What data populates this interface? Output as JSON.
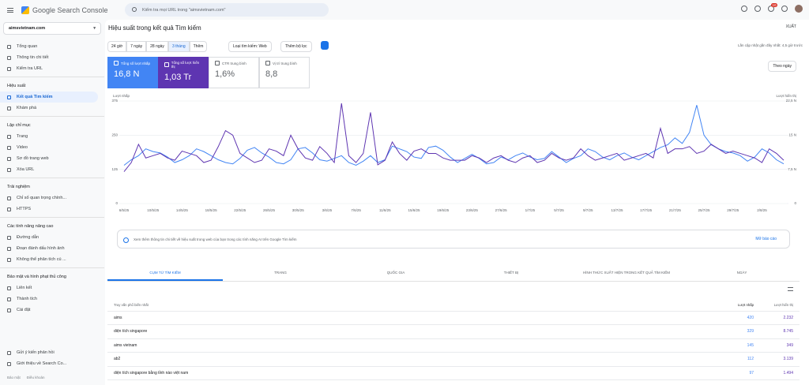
{
  "header": {
    "product": "Google Search Console",
    "search_placeholder": "Kiểm tra mọi URL trong \"aimsvietnam.com\"",
    "badge": "10"
  },
  "sidebar": {
    "property": "aimsvietnam.com",
    "top_items": [
      "Tổng quan",
      "Thông tin chi tiết",
      "Kiểm tra URL"
    ],
    "sections": [
      {
        "title": "Hiệu suất",
        "items": [
          "Kết quả Tìm kiếm",
          "Khám phá"
        ]
      },
      {
        "title": "Lập chỉ mục",
        "items": [
          "Trang",
          "Video",
          "Sơ đồ trang web",
          "Xóa URL"
        ]
      },
      {
        "title": "Trải nghiệm",
        "items": [
          "Chỉ số quan trọng chính...",
          "HTTPS"
        ]
      },
      {
        "title": "Các tính năng nâng cao",
        "items": [
          "Đường dẫn",
          "Đoạn đánh dấu hình ảnh",
          "Không thể phân tích cú ..."
        ]
      },
      {
        "title": "Bảo mật và hình phạt thủ công",
        "items": [
          "Liên kết",
          "Thành tích",
          "Cài đặt"
        ]
      }
    ],
    "bottom_items": [
      "Gửi ý kiến phản hồi",
      "Giới thiệu về Search Co..."
    ],
    "footer": [
      "Bảo mật",
      "Điều khoản"
    ]
  },
  "page": {
    "title": "Hiệu suất trong kết quả Tìm kiếm",
    "export": "XUẤT",
    "date_ranges": [
      "24 giờ",
      "7 ngày",
      "28 ngày",
      "3 tháng",
      "Thêm"
    ],
    "search_type": "Loại tìm kiếm: Web",
    "add_filter": "Thêm bộ lọc",
    "updated": "Lần cập nhật gần đây nhất: 4,5 giờ trước",
    "granularity": "Theo ngày"
  },
  "metrics": [
    {
      "label": "Tổng số lượt nhấp",
      "value": "16,8 N"
    },
    {
      "label": "Tổng số lượt hiển thị",
      "value": "1,03 Tr"
    },
    {
      "label": "CTR trung bình",
      "value": "1,6%"
    },
    {
      "label": "Vị trí trung bình",
      "value": "8,8"
    }
  ],
  "chart_data": {
    "type": "line",
    "categories": [
      "6/5/25",
      null,
      null,
      null,
      "10/5/25",
      null,
      null,
      null,
      "14/5/25",
      null,
      null,
      null,
      "18/5/25",
      null,
      null,
      null,
      "22/5/25",
      null,
      null,
      null,
      "26/5/25",
      null,
      null,
      null,
      "30/5/25",
      null,
      null,
      null,
      "3/6/25",
      null,
      null,
      null,
      "7/6/25",
      null,
      null,
      null,
      "11/6/25",
      null,
      null,
      null,
      "15/6/25",
      null,
      null,
      null,
      "19/6/25",
      null,
      null,
      null,
      "23/6/25",
      null,
      null,
      null,
      "27/6/25",
      null,
      null,
      null,
      "1/7/25",
      null,
      null,
      null,
      "5/7/25",
      null,
      null,
      null,
      "9/7/25",
      null,
      null,
      null,
      "13/7/25",
      null,
      null,
      null,
      "17/7/25",
      null,
      null,
      null,
      "21/7/25",
      null,
      null,
      null,
      "25/7/25",
      null,
      null,
      null,
      "29/7/25",
      null,
      null,
      null,
      "2/8/25",
      null,
      null,
      null
    ],
    "series": [
      {
        "name": "Lượt nhấp",
        "color": "#4285f4",
        "values": [
          140,
          160,
          175,
          200,
          190,
          185,
          170,
          150,
          160,
          175,
          200,
          190,
          175,
          160,
          150,
          145,
          165,
          195,
          205,
          185,
          170,
          150,
          145,
          160,
          200,
          205,
          185,
          160,
          155,
          165,
          175,
          150,
          140,
          155,
          175,
          150,
          160,
          210,
          200,
          190,
          170,
          165,
          205,
          210,
          195,
          170,
          150,
          165,
          180,
          165,
          145,
          150,
          170,
          160,
          175,
          185,
          170,
          160,
          165,
          190,
          170,
          150,
          165,
          175,
          200,
          190,
          170,
          160,
          175,
          185,
          170,
          160,
          175,
          190,
          205,
          215,
          240,
          220,
          260,
          360,
          250,
          215,
          200,
          190,
          185,
          175,
          155,
          170,
          200,
          185,
          160,
          145
        ]
      },
      {
        "name": "Lượt hiển thị",
        "color": "#5e35b1",
        "axis": "y2",
        "values": [
          7000,
          9000,
          13000,
          10000,
          10500,
          11000,
          10000,
          9500,
          11500,
          11000,
          10500,
          9000,
          9500,
          12500,
          16000,
          15000,
          11000,
          10000,
          9000,
          9500,
          12000,
          11500,
          10500,
          15000,
          12000,
          10000,
          9500,
          12500,
          11000,
          9000,
          22000,
          10500,
          9000,
          11000,
          20000,
          8500,
          9500,
          13500,
          11000,
          9500,
          11500,
          12000,
          11000,
          11000,
          10000,
          9500,
          9500,
          9500,
          10500,
          10000,
          9000,
          10000,
          10500,
          9500,
          9000,
          10000,
          10500,
          9000,
          9500,
          11000,
          10000,
          9500,
          10000,
          12000,
          10500,
          9500,
          10000,
          10500,
          11000,
          9500,
          10000,
          10500,
          11000,
          10000,
          16500,
          11000,
          12000,
          12000,
          12500,
          11000,
          11500,
          13000,
          12000,
          11000,
          11500,
          11000,
          10500,
          10000,
          9000,
          12000,
          11000,
          9500
        ]
      }
    ],
    "ylim": [
      0,
      375
    ],
    "yticks": [
      0,
      125,
      250,
      375
    ],
    "y2lim": [
      0,
      22500
    ],
    "y2ticks": [
      0,
      {
        "value": 7500,
        "label": "7,5 N"
      },
      {
        "value": 15000,
        "label": "15 N"
      },
      {
        "value": 22500,
        "label": "22,5 N"
      }
    ],
    "grid": true
  },
  "banner": {
    "text": "Xem thêm thông tin chi tiết về hiệu suất trong web của bạn trong các tính năng AI trên Google Tìm kiếm",
    "link": "Mở báo cáo"
  },
  "tabs": [
    "CỤM TỪ TÌM KIẾM",
    "TRANG",
    "QUỐC GIA",
    "THIẾT BỊ",
    "HÌNH THỨC XUẤT HIỆN TRONG KẾT QUẢ TÌM KIẾM",
    "NGÀY"
  ],
  "table": {
    "header": [
      "Truy vấn phổ biến nhất",
      "Lượt nhấp",
      "Lượt hiển thị"
    ],
    "rows": [
      [
        "aims",
        "420",
        "2.232"
      ],
      [
        "diện tích singapore",
        "329",
        "8.745"
      ],
      [
        "aims vietnam",
        "145",
        "349"
      ],
      [
        "ab2",
        "112",
        "3.139"
      ],
      [
        "diện tích singapore bằng tỉnh nào việt nam",
        "97",
        "1.494"
      ]
    ]
  }
}
